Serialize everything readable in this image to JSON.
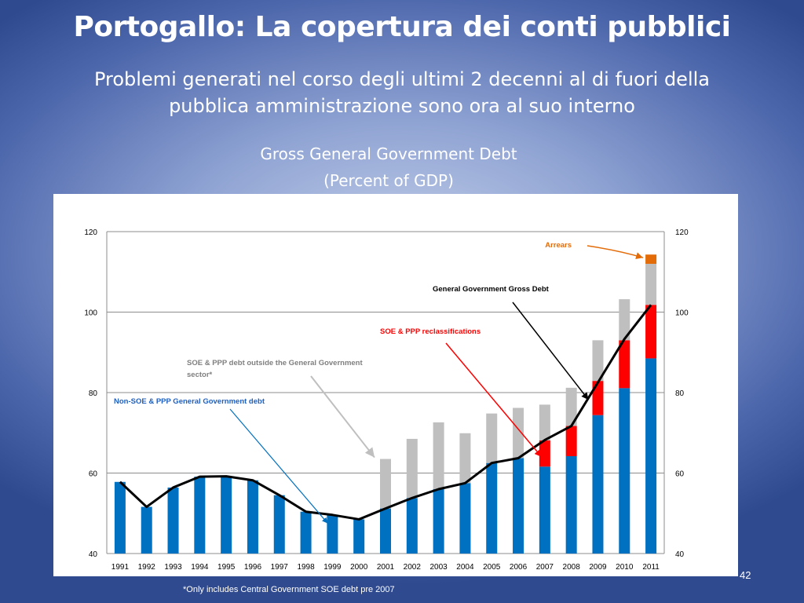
{
  "slide": {
    "title": "Portogallo: La copertura dei conti pubblici",
    "subtitle_line1": "Problemi generati nel corso degli ultimi 2 decenni  al di fuori della",
    "subtitle_line2": "pubblica amministrazione sono ora al suo interno",
    "page_number": "42",
    "footnote": "*Only includes Central Government SOE debt pre 2007"
  },
  "chart_data": {
    "type": "bar",
    "title": "Gross General Government Debt",
    "subtitle": "(Percent of GDP)",
    "ylim": [
      40,
      120
    ],
    "yticks": [
      40,
      60,
      80,
      100,
      120
    ],
    "grid": true,
    "categories": [
      "1991",
      "1992",
      "1993",
      "1994",
      "1995",
      "1996",
      "1997",
      "1998",
      "1999",
      "2000",
      "2001",
      "2002",
      "2003",
      "2004",
      "2005",
      "2006",
      "2007",
      "2008",
      "2009",
      "2010",
      "2011"
    ],
    "series": [
      {
        "name": "Non-SOE & PPP General Government debt",
        "stacked": true,
        "color": "#0070c0",
        "values": [
          57.8,
          51.6,
          56.4,
          59.1,
          59.2,
          58.2,
          54.5,
          50.4,
          49.6,
          48.5,
          51.2,
          53.8,
          56.0,
          57.5,
          62.5,
          63.7,
          61.6,
          64.2,
          74.4,
          81.1,
          88.5
        ]
      },
      {
        "name": "SOE & PPP reclassifications",
        "stacked": true,
        "color": "#ff0000",
        "values": [
          0,
          0,
          0,
          0,
          0,
          0,
          0,
          0,
          0,
          0,
          0,
          0,
          0,
          0,
          0,
          0,
          6.5,
          7.5,
          8.5,
          11.9,
          13.3
        ]
      },
      {
        "name": "SOE & PPP debt outside the General Government sector*",
        "stacked": true,
        "color": "#bfbfbf",
        "values": [
          0,
          0,
          0,
          0,
          0,
          0,
          0,
          0,
          0,
          0,
          12.3,
          14.7,
          16.6,
          12.4,
          12.3,
          12.5,
          8.9,
          9.5,
          10.1,
          10.2,
          10.2
        ]
      },
      {
        "name": "Arrears",
        "stacked": true,
        "color": "#e36c09",
        "values": [
          0,
          0,
          0,
          0,
          0,
          0,
          0,
          0,
          0,
          0,
          0,
          0,
          0,
          0,
          0,
          0,
          0,
          0,
          0,
          0,
          2.3
        ]
      },
      {
        "name": "General Government  Gross Debt",
        "type": "line",
        "color": "#000000",
        "values": [
          57.8,
          51.6,
          56.4,
          59.1,
          59.2,
          58.2,
          54.5,
          50.4,
          49.6,
          48.5,
          51.2,
          53.8,
          56.0,
          57.5,
          62.5,
          63.7,
          68.2,
          71.7,
          82.5,
          93.3,
          101.8
        ]
      }
    ],
    "annotations": [
      {
        "id": "arrears",
        "text": "Arrears",
        "color": "#e36c09",
        "target_year": "2011"
      },
      {
        "id": "gg-debt",
        "text": "General Government  Gross Debt",
        "color": "#000000",
        "target_year": "2009"
      },
      {
        "id": "reclass",
        "text": "SOE & PPP reclassifications",
        "color": "#ff0000",
        "target_year": "2007"
      },
      {
        "id": "soe-outside",
        "text1": "SOE & PPP debt outside the General Government",
        "text2": "sector*",
        "color": "#bfbfbf",
        "text_color": "#7f7f7f",
        "target_year": "2001"
      },
      {
        "id": "non-soe",
        "text": "Non-SOE & PPP General Government debt",
        "color": "#0070c0",
        "text_color": "#1f5fbf",
        "target_year": "1999"
      }
    ]
  }
}
